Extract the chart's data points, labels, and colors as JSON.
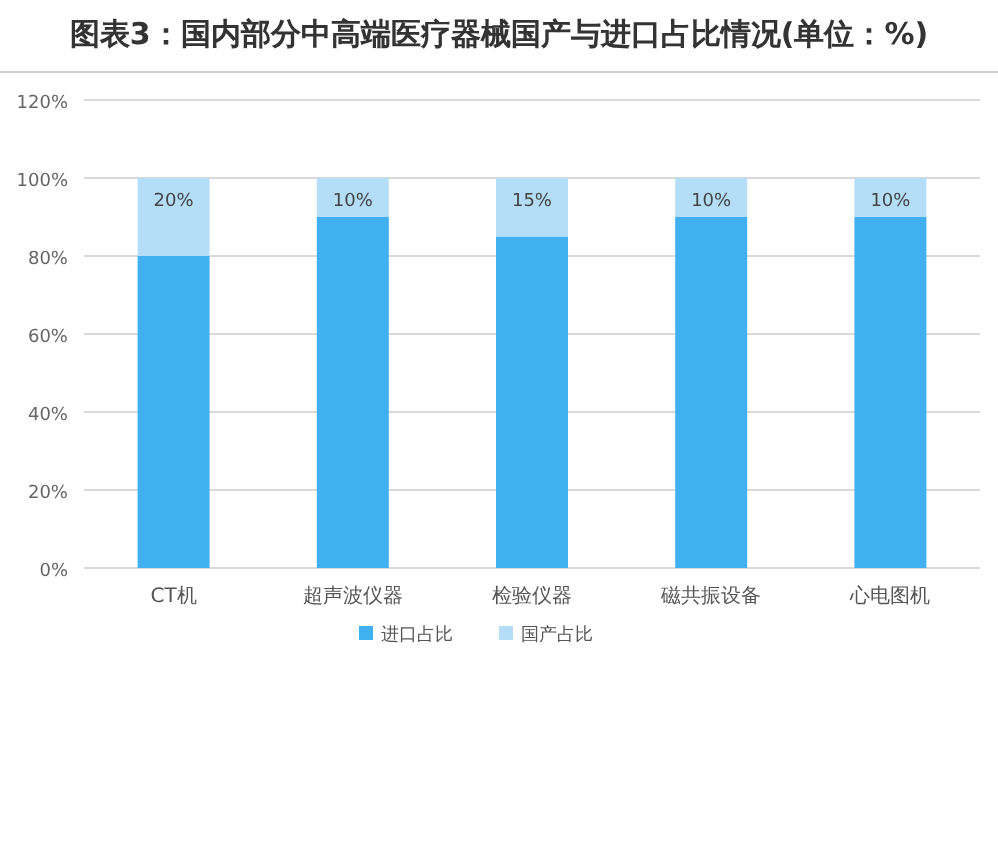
{
  "chart_data": {
    "type": "bar",
    "title": "图表3：国内部分中高端医疗器械国产与进口占比情况(单位：%)",
    "categories": [
      "CT机",
      "超声波仪器",
      "检验仪器",
      "磁共振设备",
      "心电图机"
    ],
    "stacked": true,
    "series": [
      {
        "name": "进口占比",
        "color": "#41b0f0",
        "values": [
          80,
          90,
          85,
          90,
          90
        ]
      },
      {
        "name": "国产占比",
        "color": "#b4def7",
        "values": [
          20,
          10,
          15,
          10,
          10
        ],
        "value_labels": [
          "20%",
          "10%",
          "15%",
          "10%",
          "10%"
        ]
      }
    ],
    "ylim": [
      0,
      120
    ],
    "yticks": [
      {
        "value": 0,
        "label": "0%"
      },
      {
        "value": 20,
        "label": "20%"
      },
      {
        "value": 40,
        "label": "40%"
      },
      {
        "value": 60,
        "label": "60%"
      },
      {
        "value": 80,
        "label": "80%"
      },
      {
        "value": 100,
        "label": "100%"
      },
      {
        "value": 120,
        "label": "120%"
      }
    ],
    "grid": "y",
    "legend": "bottom"
  }
}
